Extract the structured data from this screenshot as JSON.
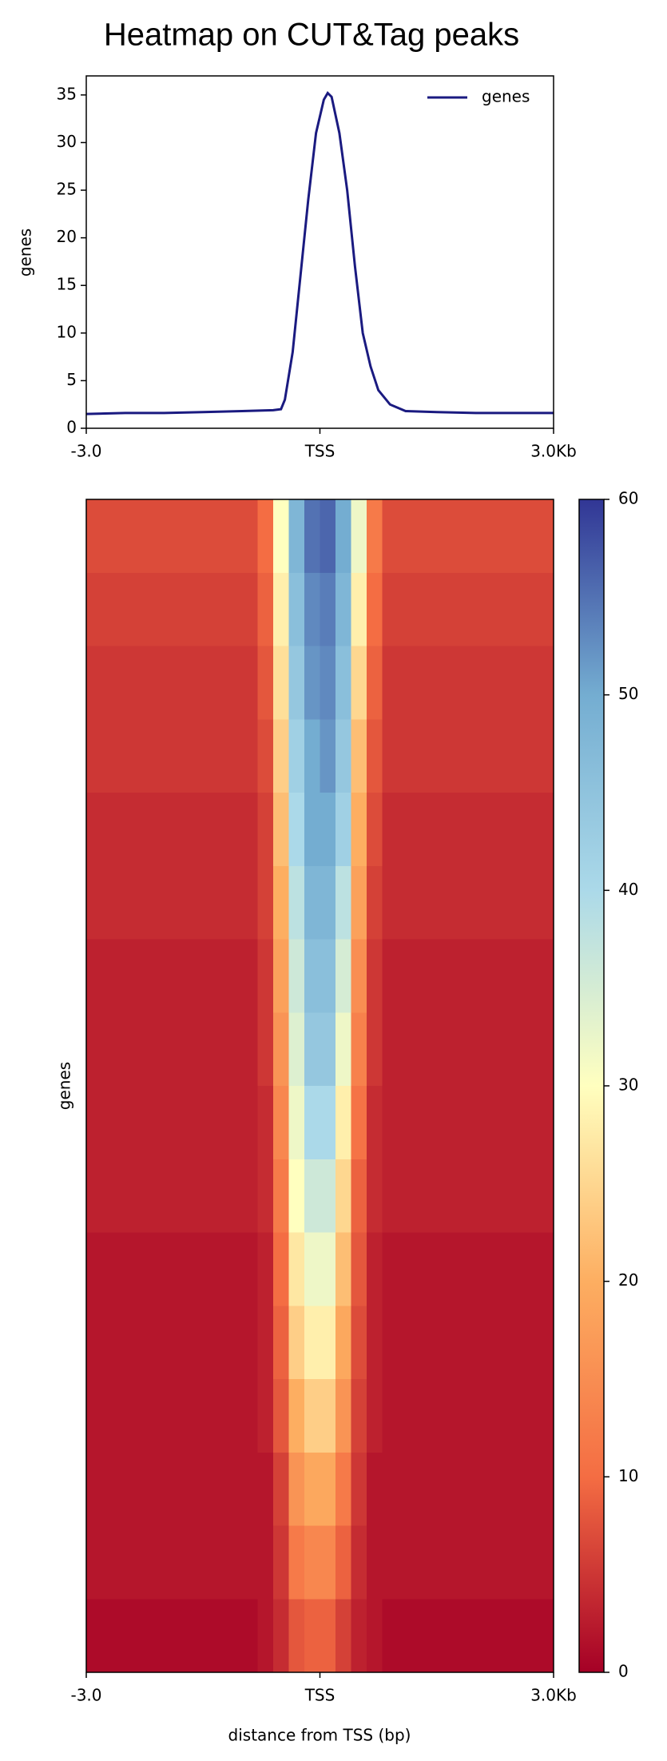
{
  "chart_data": [
    {
      "type": "line",
      "title": "Heatmap on CUT&Tag peaks",
      "ylabel": "genes",
      "x": [
        -3,
        -2.5,
        -2,
        -1.5,
        -1,
        -0.6,
        -0.5,
        -0.45,
        -0.35,
        -0.25,
        -0.15,
        -0.05,
        0.05,
        0.1,
        0.15,
        0.25,
        0.35,
        0.45,
        0.55,
        0.65,
        0.75,
        0.9,
        1.1,
        1.5,
        2,
        2.5,
        3
      ],
      "series": [
        {
          "name": "genes",
          "color": "#1a1a80",
          "values": [
            1.5,
            1.6,
            1.6,
            1.7,
            1.8,
            1.9,
            2.0,
            3,
            8,
            16,
            24,
            31,
            34.5,
            35.2,
            34.8,
            31,
            25,
            17,
            10,
            6.5,
            4,
            2.5,
            1.8,
            1.7,
            1.6,
            1.6,
            1.6
          ]
        }
      ],
      "xlim": [
        -3,
        3
      ],
      "xticks": [
        {
          "value": -3,
          "label": "-3.0"
        },
        {
          "value": 0,
          "label": "TSS"
        },
        {
          "value": 3,
          "label": "3.0Kb"
        }
      ],
      "ylim": [
        0,
        37
      ],
      "yticks": [
        0,
        5,
        10,
        15,
        20,
        25,
        30,
        35
      ],
      "legend": "upper right",
      "grid": false
    },
    {
      "type": "heatmap",
      "xlabel": "distance from TSS (bp)",
      "ylabel": "genes",
      "xlim": [
        -3,
        3
      ],
      "xticks": [
        {
          "value": -3,
          "label": "-3.0"
        },
        {
          "value": 0,
          "label": "TSS"
        },
        {
          "value": 3,
          "label": "3.0Kb"
        }
      ],
      "colormap": [
        "#a50026",
        "#f46d43",
        "#fdae61",
        "#ffffbf",
        "#abd9e9",
        "#74add1",
        "#313695"
      ],
      "clim": [
        0,
        60
      ],
      "cticks": [
        0,
        10,
        20,
        30,
        40,
        50,
        60
      ],
      "values": [
        [
          7,
          7,
          7,
          7,
          7,
          7,
          7,
          7,
          7,
          7,
          7,
          10,
          30,
          48,
          55,
          56,
          50,
          32,
          12,
          7,
          7,
          7,
          7,
          7,
          7,
          7,
          7,
          7,
          7,
          7
        ],
        [
          6,
          6,
          6,
          6,
          6,
          6,
          6,
          6,
          6,
          6,
          6,
          9,
          28,
          46,
          53,
          54,
          48,
          28,
          10,
          6,
          6,
          6,
          6,
          6,
          6,
          6,
          6,
          6,
          6,
          6
        ],
        [
          5,
          5,
          5,
          5,
          5,
          5,
          5,
          5,
          5,
          5,
          5,
          8,
          26,
          44,
          52,
          53,
          46,
          25,
          9,
          5,
          5,
          5,
          5,
          5,
          5,
          5,
          5,
          5,
          5,
          5
        ],
        [
          5,
          5,
          5,
          5,
          5,
          5,
          5,
          5,
          5,
          5,
          5,
          7,
          24,
          42,
          50,
          52,
          44,
          22,
          8,
          5,
          5,
          5,
          5,
          5,
          5,
          5,
          5,
          5,
          5,
          5
        ],
        [
          4,
          4,
          4,
          4,
          4,
          4,
          4,
          4,
          4,
          4,
          4,
          6,
          22,
          40,
          50,
          50,
          42,
          20,
          7,
          4,
          4,
          4,
          4,
          4,
          4,
          4,
          4,
          4,
          4,
          4
        ],
        [
          4,
          4,
          4,
          4,
          4,
          4,
          4,
          4,
          4,
          4,
          4,
          6,
          20,
          38,
          48,
          48,
          38,
          18,
          6,
          4,
          4,
          4,
          4,
          4,
          4,
          4,
          4,
          4,
          4,
          4
        ],
        [
          3,
          3,
          3,
          3,
          3,
          3,
          3,
          3,
          3,
          3,
          3,
          5,
          18,
          36,
          46,
          46,
          35,
          15,
          5,
          3,
          3,
          3,
          3,
          3,
          3,
          3,
          3,
          3,
          3,
          3
        ],
        [
          3,
          3,
          3,
          3,
          3,
          3,
          3,
          3,
          3,
          3,
          3,
          5,
          16,
          34,
          44,
          44,
          32,
          13,
          5,
          3,
          3,
          3,
          3,
          3,
          3,
          3,
          3,
          3,
          3,
          3
        ],
        [
          3,
          3,
          3,
          3,
          3,
          3,
          3,
          3,
          3,
          3,
          3,
          4,
          14,
          32,
          40,
          40,
          28,
          11,
          4,
          3,
          3,
          3,
          3,
          3,
          3,
          3,
          3,
          3,
          3,
          3
        ],
        [
          3,
          3,
          3,
          3,
          3,
          3,
          3,
          3,
          3,
          3,
          3,
          4,
          12,
          30,
          36,
          36,
          25,
          9,
          4,
          3,
          3,
          3,
          3,
          3,
          3,
          3,
          3,
          3,
          3,
          3
        ],
        [
          2,
          2,
          2,
          2,
          2,
          2,
          2,
          2,
          2,
          2,
          2,
          3,
          10,
          27,
          32,
          32,
          22,
          8,
          3,
          2,
          2,
          2,
          2,
          2,
          2,
          2,
          2,
          2,
          2,
          2
        ],
        [
          2,
          2,
          2,
          2,
          2,
          2,
          2,
          2,
          2,
          2,
          2,
          3,
          9,
          24,
          28,
          28,
          19,
          7,
          3,
          2,
          2,
          2,
          2,
          2,
          2,
          2,
          2,
          2,
          2,
          2
        ],
        [
          2,
          2,
          2,
          2,
          2,
          2,
          2,
          2,
          2,
          2,
          2,
          3,
          8,
          20,
          24,
          24,
          16,
          6,
          3,
          2,
          2,
          2,
          2,
          2,
          2,
          2,
          2,
          2,
          2,
          2
        ],
        [
          2,
          2,
          2,
          2,
          2,
          2,
          2,
          2,
          2,
          2,
          2,
          2,
          6,
          16,
          19,
          19,
          12,
          5,
          2,
          2,
          2,
          2,
          2,
          2,
          2,
          2,
          2,
          2,
          2,
          2
        ],
        [
          2,
          2,
          2,
          2,
          2,
          2,
          2,
          2,
          2,
          2,
          2,
          2,
          5,
          12,
          14,
          14,
          9,
          4,
          2,
          2,
          2,
          2,
          2,
          2,
          2,
          2,
          2,
          2,
          2,
          2
        ],
        [
          1,
          1,
          1,
          1,
          1,
          1,
          1,
          1,
          1,
          1,
          1,
          2,
          4,
          8,
          9,
          9,
          6,
          3,
          2,
          1,
          1,
          1,
          1,
          1,
          1,
          1,
          1,
          1,
          1,
          1
        ]
      ]
    }
  ]
}
